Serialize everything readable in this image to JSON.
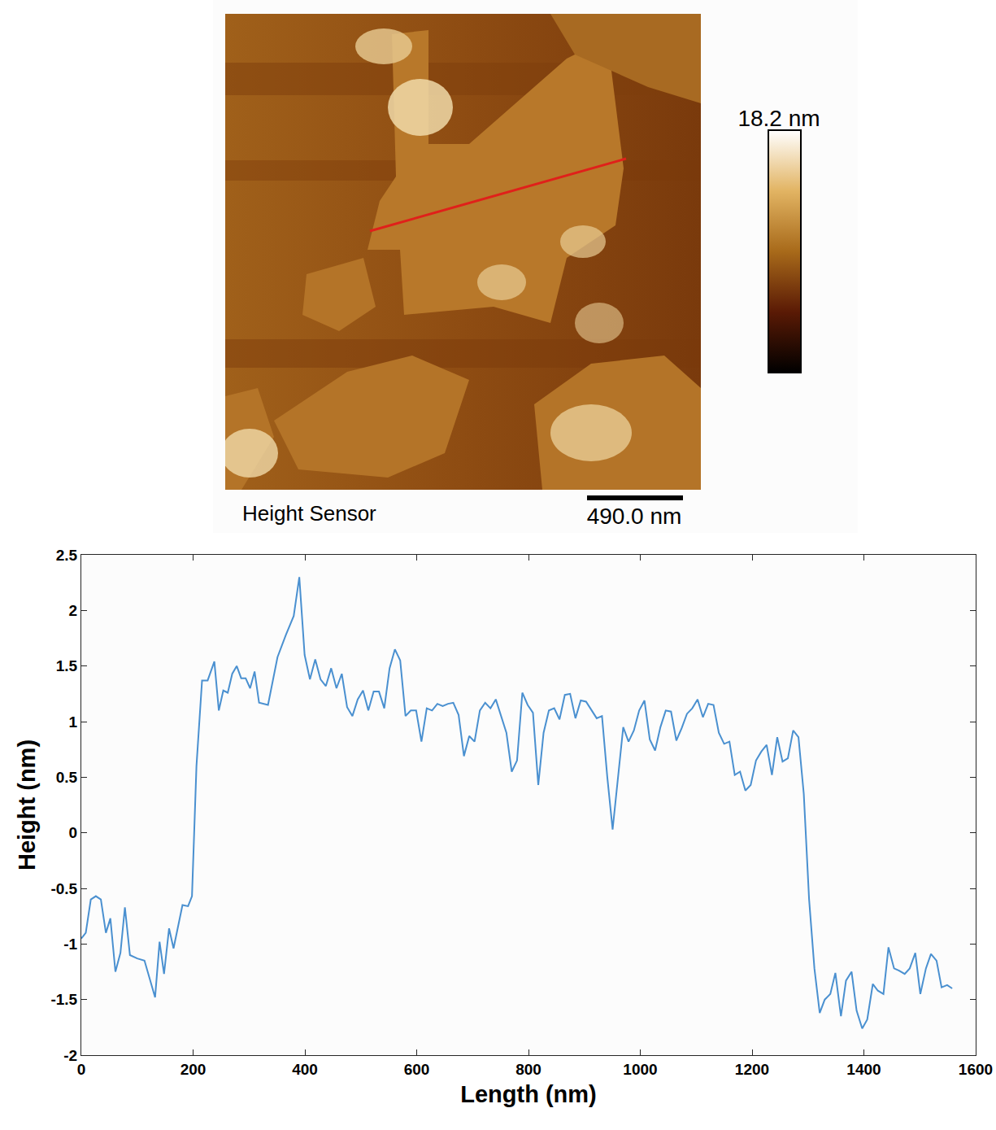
{
  "image": {
    "label": "Height Sensor",
    "scale_bar": "490.0 nm",
    "colorbar_max": "18.2 nm"
  },
  "chart_data": {
    "type": "line",
    "x_label": "Length (nm)",
    "y_label": "Height (nm)",
    "x": [
      0,
      8,
      17,
      26,
      35,
      44,
      52,
      61,
      70,
      78,
      87,
      100,
      113,
      122,
      132,
      140,
      148,
      157,
      165,
      181,
      191,
      198,
      206,
      216,
      226,
      238,
      246,
      254,
      262,
      270,
      278,
      286,
      294,
      302,
      310,
      318,
      334,
      351,
      366,
      380,
      390,
      399.5,
      409,
      418.5,
      428,
      437.5,
      447,
      456.5,
      466,
      475.5,
      485,
      494.5,
      504,
      513.5,
      523,
      532.5,
      542,
      551.5,
      561,
      570.5,
      580,
      589.5,
      599,
      608.5,
      618,
      627.5,
      637,
      646.5,
      656,
      665.5,
      675,
      684.5,
      694,
      703.5,
      713,
      722.5,
      732,
      741.5,
      751,
      760.5,
      770,
      779.5,
      789,
      798.5,
      808,
      817.5,
      827,
      836.5,
      846,
      855.5,
      865,
      874.5,
      884,
      893.5,
      903,
      912.5,
      922,
      931.5,
      941,
      950.5,
      960,
      969.5,
      979,
      988.5,
      998,
      1007.5,
      1017,
      1026.5,
      1036,
      1045.5,
      1055,
      1064.5,
      1074,
      1083.5,
      1093,
      1102.5,
      1112,
      1121.5,
      1131,
      1140.5,
      1150,
      1159.5,
      1169,
      1178.5,
      1188,
      1197.5,
      1207,
      1216.5,
      1226,
      1235.5,
      1245,
      1254.5,
      1264,
      1273.5,
      1283,
      1292.5,
      1302,
      1311.5,
      1321,
      1330,
      1340,
      1349,
      1359,
      1368,
      1378,
      1387,
      1397,
      1406,
      1416,
      1425,
      1435,
      1444,
      1454,
      1463,
      1473,
      1482,
      1492,
      1501,
      1511,
      1520,
      1530,
      1539,
      1549,
      1558
    ],
    "values": [
      -0.95,
      -0.9,
      -0.6,
      -0.57,
      -0.6,
      -0.9,
      -0.77,
      -1.25,
      -1.08,
      -0.67,
      -1.1,
      -1.13,
      -1.15,
      -1.3,
      -1.48,
      -0.98,
      -1.27,
      -0.86,
      -1.04,
      -0.65,
      -0.66,
      -0.57,
      0.6,
      1.37,
      1.37,
      1.54,
      1.1,
      1.28,
      1.26,
      1.43,
      1.5,
      1.39,
      1.39,
      1.3,
      1.45,
      1.17,
      1.15,
      1.58,
      1.78,
      1.95,
      2.3,
      1.6,
      1.38,
      1.56,
      1.38,
      1.32,
      1.48,
      1.3,
      1.43,
      1.13,
      1.05,
      1.2,
      1.28,
      1.1,
      1.27,
      1.27,
      1.12,
      1.48,
      1.65,
      1.55,
      1.05,
      1.1,
      1.1,
      0.82,
      1.12,
      1.1,
      1.16,
      1.14,
      1.16,
      1.17,
      1.06,
      0.69,
      0.87,
      0.82,
      1.1,
      1.17,
      1.12,
      1.2,
      1.05,
      0.9,
      0.55,
      0.65,
      1.26,
      1.15,
      1.08,
      0.43,
      0.9,
      1.1,
      1.12,
      1.02,
      1.24,
      1.25,
      1.03,
      1.19,
      1.18,
      1.1,
      1.03,
      1.05,
      0.5,
      0.03,
      0.5,
      0.95,
      0.82,
      0.92,
      1.1,
      1.19,
      0.84,
      0.74,
      0.95,
      1.1,
      1.09,
      0.83,
      0.94,
      1.07,
      1.12,
      1.2,
      1.04,
      1.16,
      1.15,
      0.9,
      0.8,
      0.82,
      0.52,
      0.55,
      0.38,
      0.43,
      0.65,
      0.73,
      0.79,
      0.52,
      0.86,
      0.64,
      0.67,
      0.92,
      0.86,
      0.35,
      -0.6,
      -1.22,
      -1.62,
      -1.5,
      -1.45,
      -1.26,
      -1.65,
      -1.33,
      -1.25,
      -1.6,
      -1.76,
      -1.68,
      -1.36,
      -1.42,
      -1.45,
      -1.03,
      -1.22,
      -1.24,
      -1.27,
      -1.22,
      -1.08,
      -1.45,
      -1.22,
      -1.09,
      -1.15,
      -1.39,
      -1.37,
      -1.4
    ],
    "color": "#4a90d0",
    "xlim": [
      0,
      1600
    ],
    "xticks": [
      0,
      200,
      400,
      600,
      800,
      1000,
      1200,
      1400,
      1600
    ],
    "ylim": [
      -2,
      2.5
    ],
    "yticks": [
      -2,
      -1.5,
      -1,
      -0.5,
      0,
      0.5,
      1,
      1.5,
      2,
      2.5
    ],
    "grid": false
  }
}
